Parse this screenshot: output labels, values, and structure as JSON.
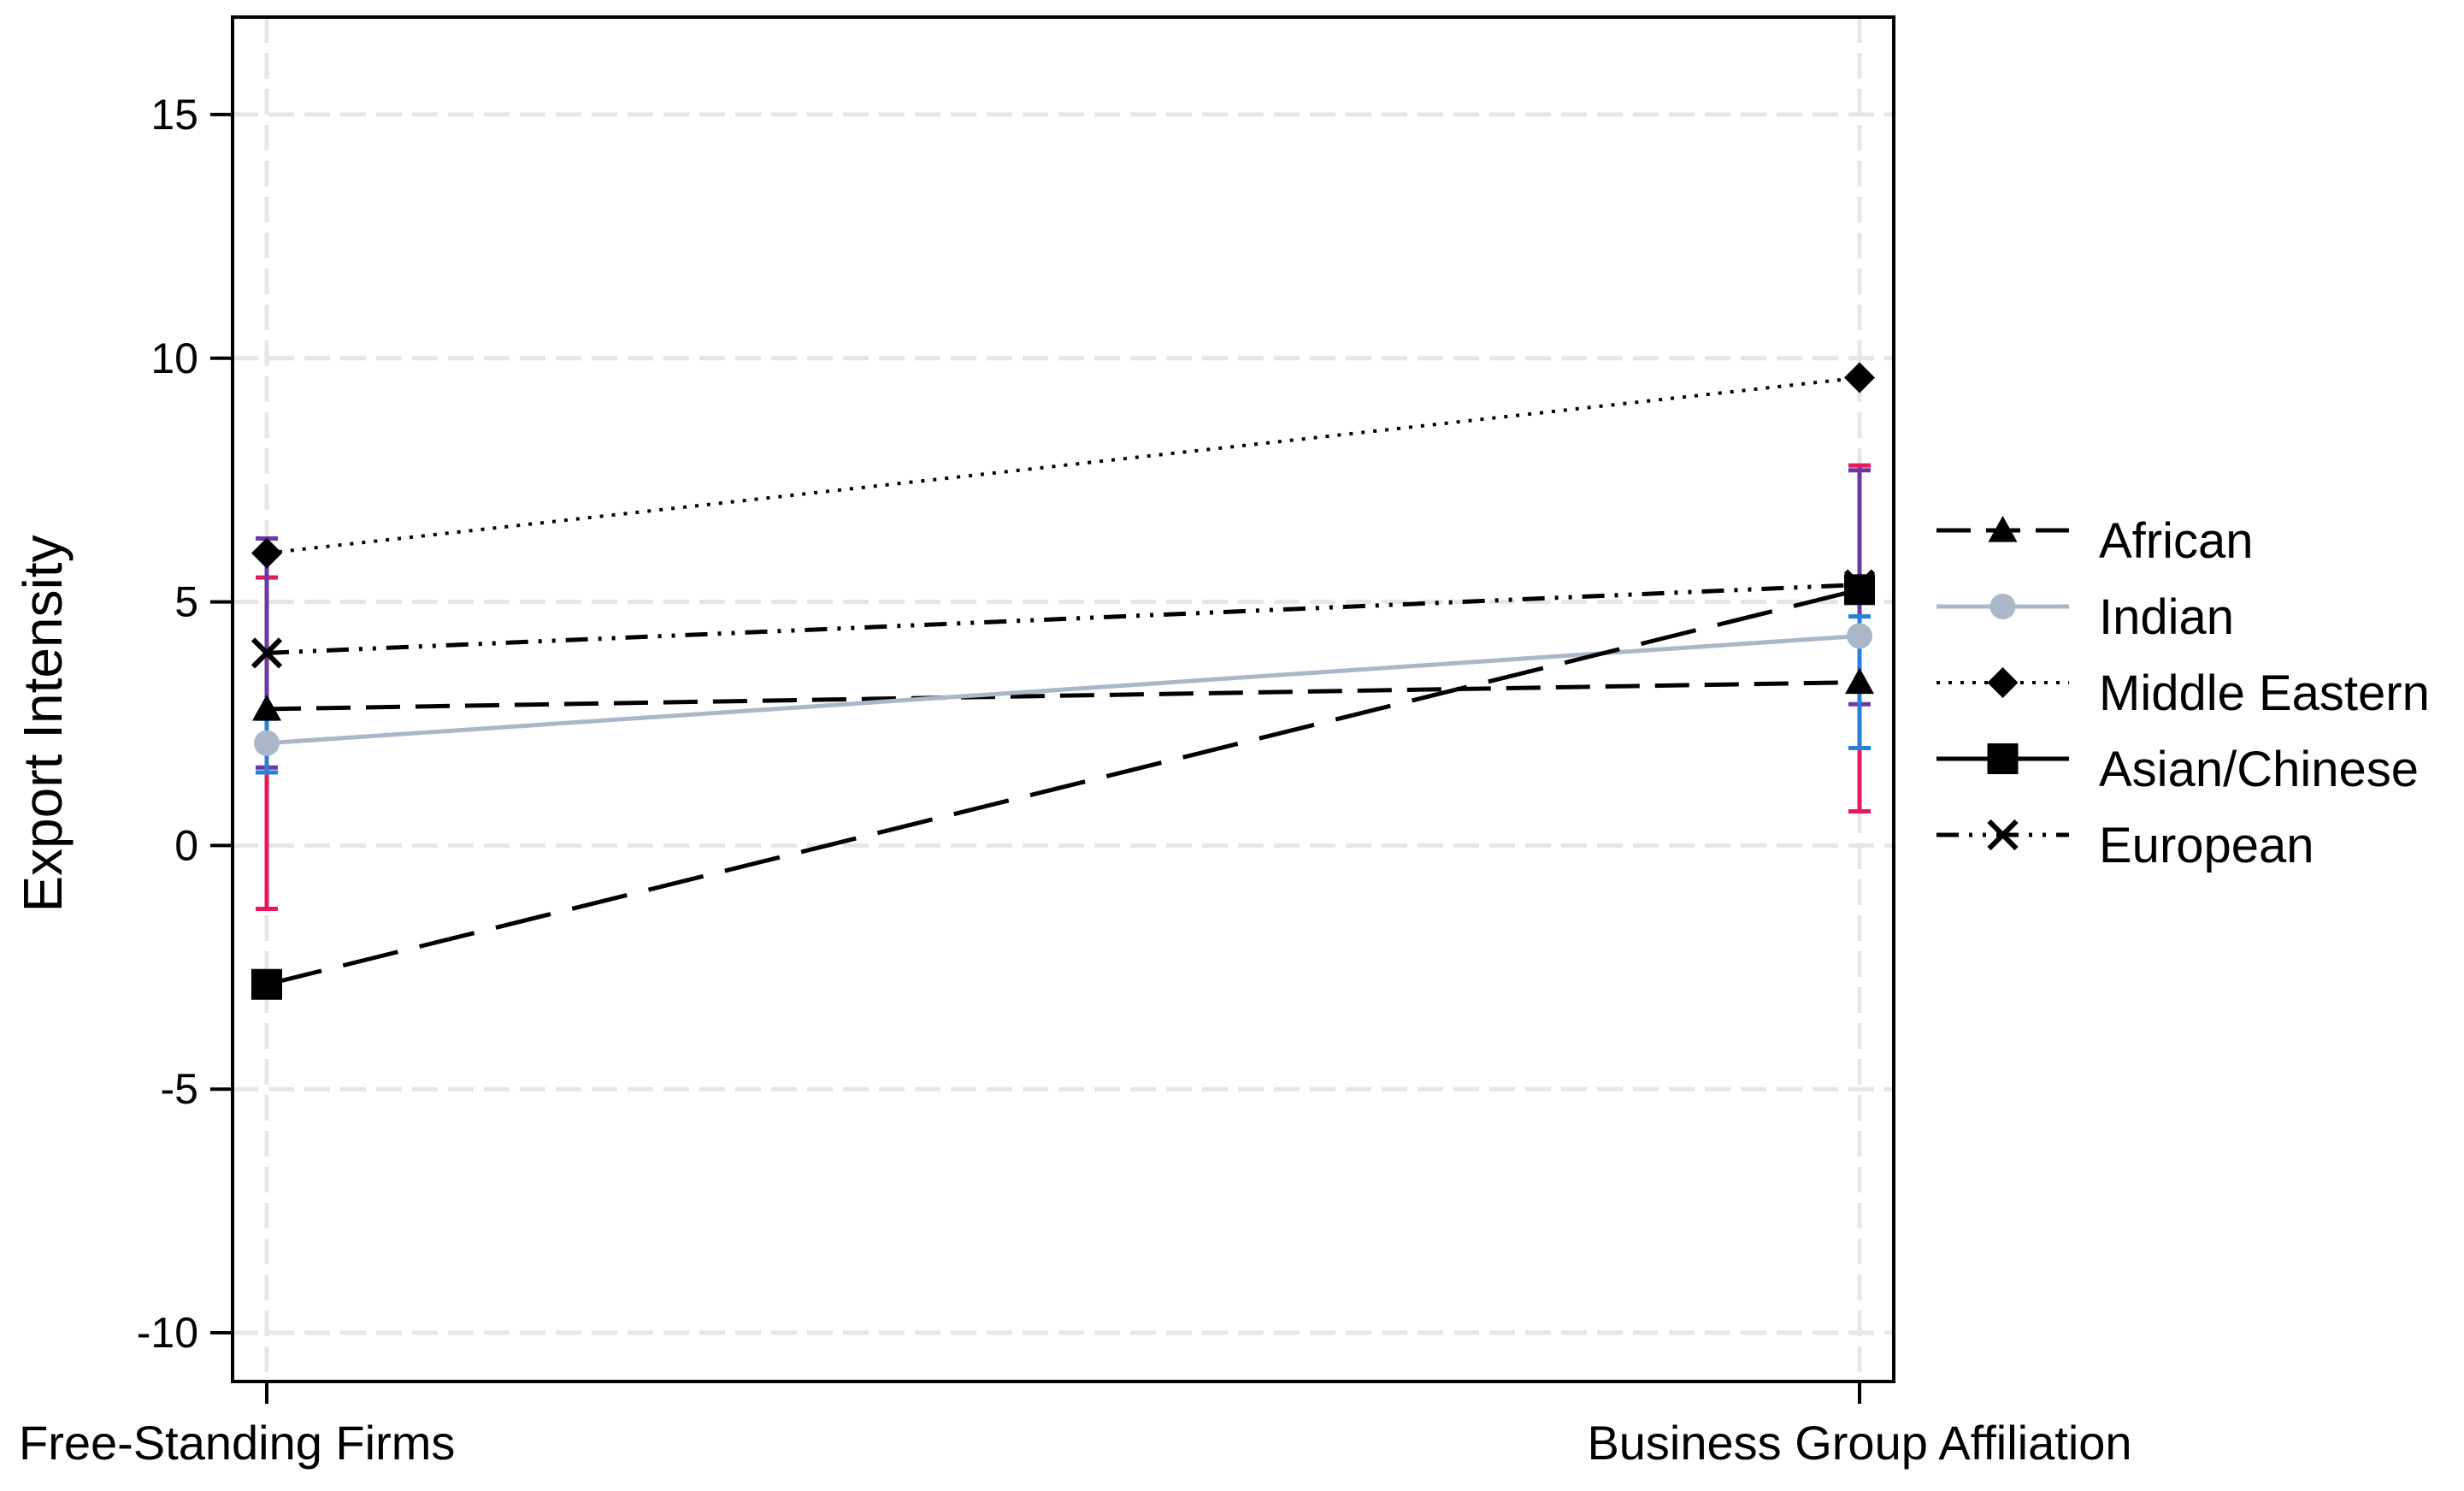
{
  "chart_data": {
    "type": "line",
    "title": "",
    "xlabel": "",
    "ylabel": "Export Intensity",
    "categories": [
      "Free-Standing Firms",
      "Business Group Affiliation"
    ],
    "ylim": [
      -11,
      17
    ],
    "yticks": [
      -10,
      -5,
      0,
      5,
      10,
      15
    ],
    "ytick_labels": [
      "-10",
      "-5",
      "0",
      "5",
      "10",
      "15"
    ],
    "grid": true,
    "legend_position": "right",
    "series": [
      {
        "name": "African",
        "values": [
          2.8,
          3.35
        ],
        "line_style": "dashed",
        "marker": "triangle",
        "color": "#000000"
      },
      {
        "name": "Indian",
        "values": [
          2.1,
          4.3
        ],
        "line_style": "solid",
        "marker": "circle",
        "color": "#a9b7c8"
      },
      {
        "name": "Middle Eastern",
        "values": [
          6.0,
          9.6
        ],
        "line_style": "dotted",
        "marker": "diamond",
        "color": "#000000"
      },
      {
        "name": "Asian/Chinese",
        "values": [
          -2.85,
          5.25
        ],
        "line_style": "long-dash",
        "marker": "square",
        "color": "#000000"
      },
      {
        "name": "European",
        "values": [
          3.95,
          5.35
        ],
        "line_style": "dash-dot-dot",
        "marker": "x",
        "color": "#000000"
      }
    ],
    "error_bars": [
      {
        "category": 0,
        "low": -1.3,
        "high": 5.5,
        "color": "#e8195a"
      },
      {
        "category": 0,
        "low": 1.6,
        "high": 6.3,
        "color": "#6a3aa2"
      },
      {
        "category": 0,
        "low": 1.5,
        "high": 2.6,
        "color": "#2a7fd8"
      },
      {
        "category": 1,
        "low": 0.7,
        "high": 7.8,
        "color": "#e8195a"
      },
      {
        "category": 1,
        "low": 2.9,
        "high": 7.7,
        "color": "#6a3aa2"
      },
      {
        "category": 1,
        "low": 2.0,
        "high": 4.7,
        "color": "#2a7fd8"
      }
    ],
    "colors": {
      "grid": "#e6e6e6",
      "axis": "#000000"
    }
  }
}
